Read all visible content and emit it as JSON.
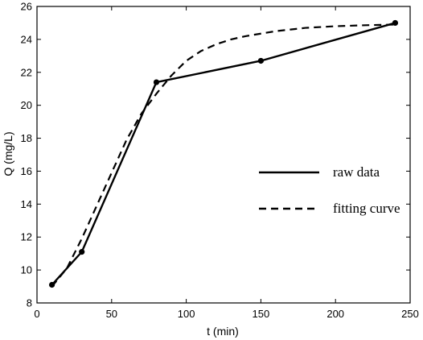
{
  "chart_data": {
    "type": "line",
    "xlabel": "t (min)",
    "ylabel": "Q (mg/L)",
    "xlim": [
      0,
      250
    ],
    "ylim": [
      8,
      26
    ],
    "xticks": [
      0,
      50,
      100,
      150,
      200,
      250
    ],
    "yticks": [
      8,
      10,
      12,
      14,
      16,
      18,
      20,
      22,
      24,
      26
    ],
    "grid": false,
    "legend_position": "right-middle",
    "series": [
      {
        "name": "raw data",
        "style": "solid",
        "markers": true,
        "color": "#000000",
        "x": [
          10,
          30,
          80,
          150,
          240
        ],
        "y": [
          9.1,
          11.1,
          21.4,
          22.7,
          25.0
        ]
      },
      {
        "name": "fitting curve",
        "style": "dashed",
        "markers": false,
        "color": "#000000",
        "x": [
          10,
          20,
          30,
          40,
          50,
          60,
          70,
          80,
          90,
          100,
          110,
          120,
          130,
          140,
          150,
          160,
          170,
          180,
          190,
          200,
          210,
          220,
          230,
          240
        ],
        "y": [
          9.0,
          10.1,
          11.9,
          13.9,
          15.9,
          17.9,
          19.5,
          20.7,
          21.8,
          22.7,
          23.3,
          23.7,
          24.0,
          24.2,
          24.35,
          24.5,
          24.6,
          24.7,
          24.75,
          24.8,
          24.83,
          24.86,
          24.88,
          24.9
        ]
      }
    ]
  }
}
